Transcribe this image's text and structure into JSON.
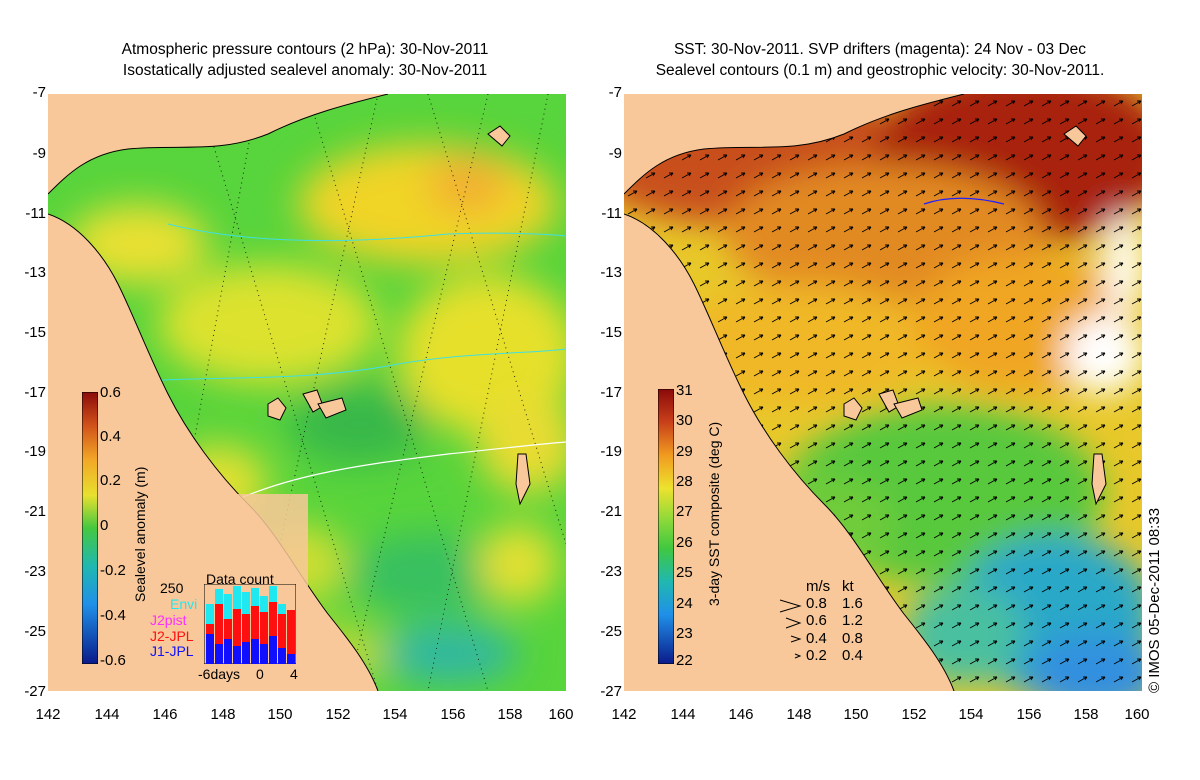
{
  "left_panel": {
    "title_line1": "Atmospheric pressure contours (2 hPa): 30-Nov-2011",
    "title_line2": "Isostatically adjusted sealevel anomaly: 30-Nov-2011",
    "y_ticks": [
      "-7",
      "-9",
      "-11",
      "-13",
      "-15",
      "-17",
      "-19",
      "-21",
      "-23",
      "-25",
      "-27"
    ],
    "x_ticks": [
      "142",
      "144",
      "146",
      "148",
      "150",
      "152",
      "154",
      "156",
      "158",
      "160"
    ],
    "colorbar": {
      "label": "Sealevel anomaly (m)",
      "ticks": [
        "0.6",
        "0.4",
        "0.2",
        "0",
        "-0.2",
        "-0.4",
        "-0.6"
      ]
    },
    "data_count": {
      "title": "Data count",
      "y_tick": "250",
      "legend": [
        {
          "label": "Envi",
          "color": "#20e8f0"
        },
        {
          "label": "J2pist",
          "color": "#ff30ff"
        },
        {
          "label": "J2-JPL",
          "color": "#ff1010"
        },
        {
          "label": "J1-JPL",
          "color": "#1010ff"
        }
      ],
      "x_ticks": [
        "-6days",
        "0",
        "4"
      ]
    }
  },
  "right_panel": {
    "title_line1": "SST: 30-Nov-2011. SVP drifters (magenta): 24 Nov - 03 Dec",
    "title_line2": "Sealevel contours (0.1 m) and geostrophic velocity: 30-Nov-2011.",
    "y_ticks": [
      "-7",
      "-9",
      "-11",
      "-13",
      "-15",
      "-17",
      "-19",
      "-21",
      "-23",
      "-25",
      "-27"
    ],
    "x_ticks": [
      "142",
      "144",
      "146",
      "148",
      "150",
      "152",
      "154",
      "156",
      "158",
      "160"
    ],
    "colorbar": {
      "label": "3-day SST composite (deg C)",
      "ticks": [
        "31",
        "30",
        "29",
        "28",
        "27",
        "26",
        "25",
        "24",
        "23",
        "22"
      ]
    },
    "velocity_legend": {
      "header_ms": "m/s",
      "header_kt": "kt",
      "rows": [
        {
          "ms": "0.8",
          "kt": "1.6"
        },
        {
          "ms": "0.6",
          "kt": "1.2"
        },
        {
          "ms": "0.4",
          "kt": "0.8"
        },
        {
          "ms": "0.2",
          "kt": "0.4"
        }
      ]
    }
  },
  "credit": "© IMOS 05-Dec-2011 08:33",
  "colors": {
    "land": "#f8c89a",
    "ocean_green": "#54d23a",
    "ocean_yellow": "#eee22e",
    "sst_red": "#c03a10",
    "sst_orange": "#f09a20"
  }
}
